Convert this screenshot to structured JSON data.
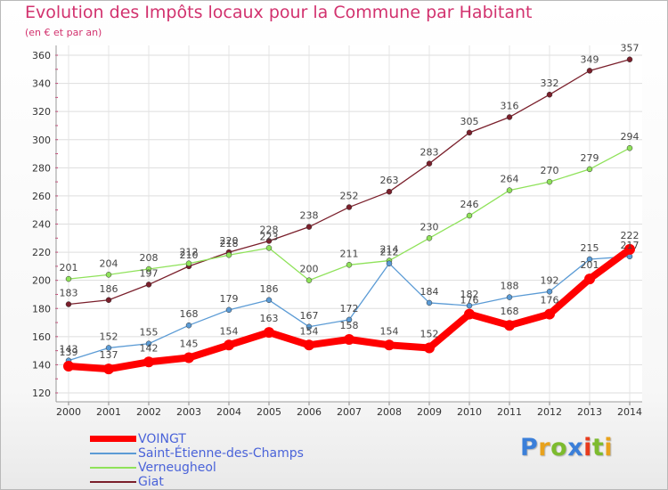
{
  "title": "Evolution des Impôts locaux pour la Commune par Habitant",
  "subtitle": "(en € et par an)",
  "logo": {
    "text": "Proxiti",
    "colors": [
      "#3b7fd9",
      "#e8a21c",
      "#7dbb2e",
      "#3b7fd9",
      "#e83a1c",
      "#7dbb2e",
      "#e8a21c"
    ]
  },
  "chart_data": {
    "type": "line",
    "title": "Evolution des Impôts locaux pour la Commune par Habitant",
    "subtitle": "(en € et par an)",
    "x": [
      "2000",
      "2001",
      "2002",
      "2003",
      "2004",
      "2005",
      "2006",
      "2007",
      "2008",
      "2009",
      "2010",
      "2011",
      "2012",
      "2013",
      "2014"
    ],
    "ylim": [
      120,
      360
    ],
    "yticks": [
      120,
      140,
      160,
      180,
      200,
      220,
      240,
      260,
      280,
      300,
      320,
      340,
      360
    ],
    "grid": true,
    "legend_position": "bottom-left",
    "series": [
      {
        "name": "VOINGT",
        "color": "#ff0000",
        "values": [
          139,
          137,
          142,
          145,
          154,
          163,
          154,
          158,
          154,
          152,
          176,
          168,
          176,
          201,
          222
        ],
        "labels": [
          "139",
          "137",
          "142",
          "145",
          "154",
          "163",
          "154",
          "158",
          "154",
          "152",
          "176",
          "168",
          "176",
          "201",
          "222"
        ]
      },
      {
        "name": "Saint-Étienne-des-Champs",
        "color": "#5b9bd5",
        "values": [
          143,
          152,
          155,
          168,
          179,
          186,
          167,
          172,
          212,
          184,
          182,
          188,
          192,
          215,
          217
        ],
        "labels": [
          "143",
          "152",
          "155",
          "168",
          "179",
          "186",
          "167",
          "172",
          "212",
          "184",
          "182",
          "188",
          "192",
          "215",
          "217"
        ]
      },
      {
        "name": "Verneugheol",
        "color": "#8fe25a",
        "values": [
          201,
          204,
          208,
          212,
          218,
          223,
          200,
          211,
          214,
          230,
          246,
          264,
          270,
          279,
          294
        ],
        "labels": [
          "201",
          "204",
          "208",
          "212",
          "218",
          "223",
          "200",
          "211",
          "214",
          "230",
          "246",
          "264",
          "270",
          "279",
          "294"
        ]
      },
      {
        "name": "Giat",
        "color": "#7a1f2b",
        "values": [
          183,
          186,
          197,
          210,
          220,
          228,
          238,
          252,
          263,
          283,
          305,
          316,
          332,
          349,
          357
        ],
        "labels": [
          "183",
          "186",
          "197",
          "210",
          "220",
          "228",
          "238",
          "252",
          "263",
          "283",
          "305",
          "316",
          "332",
          "349",
          "357"
        ]
      }
    ]
  }
}
